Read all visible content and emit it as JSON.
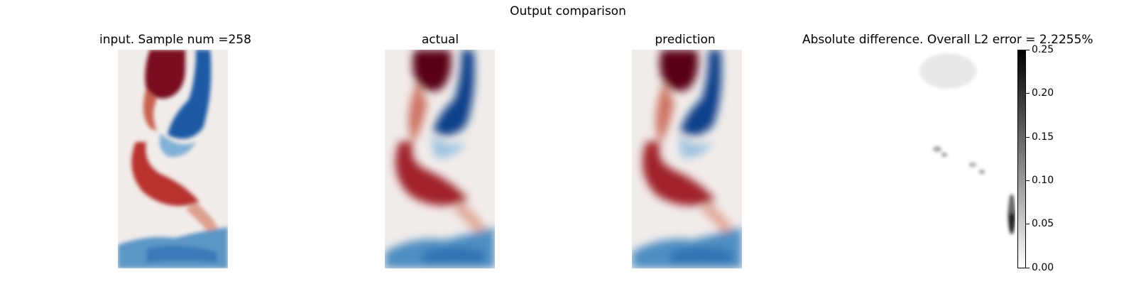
{
  "figure": {
    "title": "Output comparison",
    "panels": [
      {
        "key": "input",
        "title": "input. Sample num =258"
      },
      {
        "key": "actual",
        "title": "actual"
      },
      {
        "key": "prediction",
        "title": "prediction"
      },
      {
        "key": "difference",
        "title": "Absolute difference. Overall L2 error = 2.2255%"
      }
    ],
    "colorbar": {
      "range": [
        0.0,
        0.25
      ],
      "ticks": [
        "0.00",
        "0.05",
        "0.10",
        "0.15",
        "0.20",
        "0.25"
      ],
      "cmap": "gray_r"
    },
    "colors": {
      "red_dark": "#67001f",
      "red": "#b2242b",
      "blue_dark": "#08306b",
      "blue": "#2f6db5",
      "neutral": "#f1ecea"
    }
  }
}
